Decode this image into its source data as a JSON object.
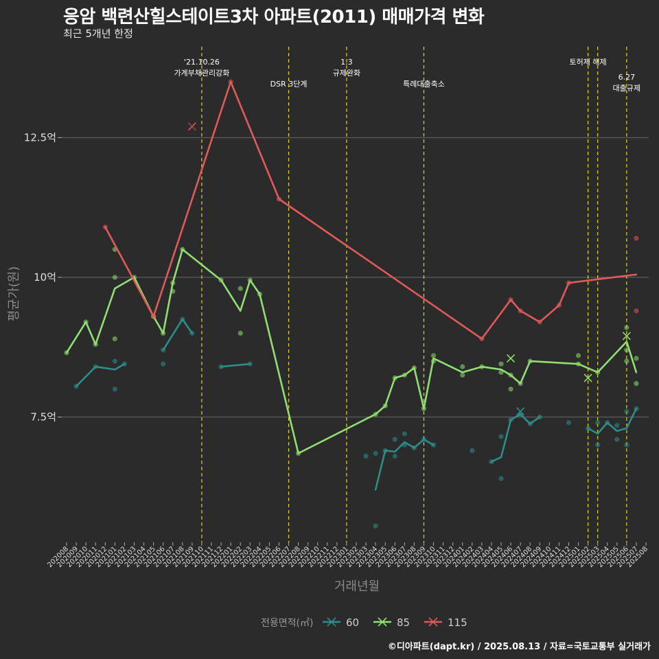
{
  "title": "응암 백련산힐스테이트3차 아파트(2011) 매매가격 변화",
  "subtitle": "최근 5개년 한정",
  "credit": "©디아파트(dapt.kr) / 2025.08.13 / 자료=국토교통부 실거래가",
  "chart_data": {
    "type": "line",
    "xlabel": "거래년월",
    "ylabel": "평균가(원)",
    "x_range": [
      "202008",
      "202508"
    ],
    "y_ticks": [
      {
        "v": 7.5,
        "label": "7.5억"
      },
      {
        "v": 10,
        "label": "10억"
      },
      {
        "v": 12.5,
        "label": "12.5억"
      }
    ],
    "ylim": [
      5.2,
      14.5
    ],
    "grid": "horizontal-major",
    "legend_title": "전용면적(㎡)",
    "legend_position": "bottom",
    "events": [
      {
        "x": "202110",
        "lines": [
          "'21.10.26",
          "가계부채관리강화"
        ],
        "row": 0
      },
      {
        "x": "202207",
        "lines": [
          "DSR 3단계"
        ],
        "row": 1
      },
      {
        "x": "202301",
        "lines": [
          "1.3",
          "규제완화"
        ],
        "row": 0
      },
      {
        "x": "202309",
        "lines": [
          "특례대출축소"
        ],
        "row": 1
      },
      {
        "x": "202502",
        "lines": [
          "토허제 해제"
        ],
        "row": 0
      },
      {
        "x": "202503",
        "lines": [],
        "row": 0
      },
      {
        "x": "202506",
        "lines": [
          "6.27",
          "대출규제"
        ],
        "row": 1
      }
    ],
    "series": [
      {
        "name": "60",
        "color": "#2a8f8a",
        "line": [
          [
            "202009",
            8.05
          ],
          [
            "202011",
            8.4
          ],
          [
            "202101",
            8.35
          ],
          [
            "202102",
            8.45
          ],
          null,
          [
            "202106",
            8.7
          ],
          [
            "202108",
            9.25
          ],
          [
            "202109",
            9.0
          ],
          null,
          [
            "202112",
            8.4
          ],
          [
            "202203",
            8.45
          ],
          null,
          [
            "202304",
            6.2
          ],
          [
            "202305",
            6.9
          ],
          [
            "202306",
            6.88
          ],
          [
            "202307",
            7.05
          ],
          [
            "202308",
            6.95
          ],
          [
            "202309",
            7.1
          ],
          [
            "202310",
            7.0
          ],
          null,
          [
            "202404",
            6.7
          ],
          [
            "202405",
            6.78
          ],
          [
            "202406",
            7.45
          ],
          [
            "202407",
            7.55
          ],
          [
            "202408",
            7.38
          ],
          [
            "202409",
            7.5
          ],
          null,
          [
            "202502",
            7.3
          ],
          [
            "202503",
            7.2
          ],
          [
            "202504",
            7.4
          ],
          [
            "202505",
            7.25
          ],
          [
            "202506",
            7.3
          ],
          [
            "202507",
            7.65
          ]
        ],
        "points": [
          [
            "202009",
            8.05
          ],
          [
            "202011",
            8.4
          ],
          [
            "202101",
            8.5
          ],
          [
            "202101",
            8.0
          ],
          [
            "202102",
            8.45
          ],
          [
            "202106",
            8.45
          ],
          [
            "202106",
            8.7
          ],
          [
            "202108",
            9.25
          ],
          [
            "202109",
            9.0
          ],
          [
            "202112",
            8.4
          ],
          [
            "202203",
            8.45
          ],
          [
            "202304",
            6.85
          ],
          [
            "202304",
            5.55
          ],
          [
            "202305",
            6.9
          ],
          [
            "202306",
            6.8
          ],
          [
            "202306",
            7.1
          ],
          [
            "202307",
            7.2
          ],
          [
            "202307",
            7.0
          ],
          [
            "202308",
            6.95
          ],
          [
            "202309",
            7.1
          ],
          [
            "202310",
            7.0
          ],
          [
            "202303",
            6.8
          ],
          [
            "202402",
            6.9
          ],
          [
            "202404",
            6.7
          ],
          [
            "202405",
            7.15
          ],
          [
            "202405",
            6.4
          ],
          [
            "202406",
            7.45
          ],
          [
            "202407",
            7.55
          ],
          [
            "202408",
            7.38
          ],
          [
            "202409",
            7.5
          ],
          [
            "202412",
            7.4
          ],
          [
            "202502",
            7.3
          ],
          [
            "202503",
            7.0
          ],
          [
            "202503",
            7.4
          ],
          [
            "202504",
            7.4
          ],
          [
            "202505",
            7.1
          ],
          [
            "202505",
            7.35
          ],
          [
            "202506",
            7.0
          ],
          [
            "202506",
            7.6
          ],
          [
            "202507",
            7.65
          ]
        ],
        "cancelled": [
          [
            "202407",
            7.6
          ]
        ]
      },
      {
        "name": "85",
        "color": "#90e070",
        "line": [
          [
            "202008",
            8.65
          ],
          [
            "202010",
            9.2
          ],
          [
            "202011",
            8.8
          ],
          [
            "202101",
            9.8
          ],
          [
            "202103",
            10.0
          ],
          [
            "202105",
            9.3
          ],
          [
            "202106",
            9.0
          ],
          [
            "202107",
            9.9
          ],
          [
            "202108",
            10.5
          ],
          [
            "202112",
            9.95
          ],
          [
            "202202",
            9.4
          ],
          [
            "202203",
            9.95
          ],
          [
            "202204",
            9.7
          ],
          [
            "202208",
            6.85
          ],
          [
            "202304",
            7.55
          ],
          [
            "202305",
            7.7
          ],
          [
            "202306",
            8.2
          ],
          [
            "202307",
            8.25
          ],
          [
            "202308",
            8.38
          ],
          [
            "202309",
            7.65
          ],
          [
            "202310",
            8.55
          ],
          [
            "202401",
            8.3
          ],
          [
            "202403",
            8.4
          ],
          [
            "202405",
            8.35
          ],
          [
            "202406",
            8.25
          ],
          [
            "202407",
            8.1
          ],
          [
            "202408",
            8.5
          ],
          [
            "202501",
            8.45
          ],
          [
            "202503",
            8.3
          ],
          [
            "202506",
            8.85
          ],
          [
            "202507",
            8.3
          ]
        ],
        "points": [
          [
            "202008",
            8.65
          ],
          [
            "202010",
            9.2
          ],
          [
            "202011",
            8.8
          ],
          [
            "202101",
            10.5
          ],
          [
            "202101",
            10.0
          ],
          [
            "202101",
            8.9
          ],
          [
            "202103",
            10.0
          ],
          [
            "202105",
            9.3
          ],
          [
            "202106",
            9.0
          ],
          [
            "202107",
            9.75
          ],
          [
            "202107",
            9.9
          ],
          [
            "202108",
            10.5
          ],
          [
            "202112",
            9.95
          ],
          [
            "202202",
            9.8
          ],
          [
            "202202",
            9.0
          ],
          [
            "202203",
            9.95
          ],
          [
            "202204",
            9.7
          ],
          [
            "202208",
            6.85
          ],
          [
            "202304",
            7.55
          ],
          [
            "202305",
            7.7
          ],
          [
            "202306",
            8.2
          ],
          [
            "202307",
            8.25
          ],
          [
            "202308",
            8.38
          ],
          [
            "202309",
            7.65
          ],
          [
            "202310",
            8.6
          ],
          [
            "202310",
            8.5
          ],
          [
            "202401",
            8.25
          ],
          [
            "202401",
            8.4
          ],
          [
            "202403",
            8.4
          ],
          [
            "202405",
            8.45
          ],
          [
            "202405",
            8.3
          ],
          [
            "202406",
            8.0
          ],
          [
            "202406",
            8.25
          ],
          [
            "202407",
            8.1
          ],
          [
            "202408",
            8.5
          ],
          [
            "202501",
            8.6
          ],
          [
            "202501",
            8.45
          ],
          [
            "202503",
            8.3
          ],
          [
            "202506",
            9.1
          ],
          [
            "202506",
            8.5
          ],
          [
            "202506",
            8.7
          ],
          [
            "202507",
            8.55
          ],
          [
            "202507",
            8.1
          ]
        ],
        "cancelled": [
          [
            "202406",
            8.55
          ],
          [
            "202502",
            8.2
          ],
          [
            "202506",
            8.95
          ]
        ]
      },
      {
        "name": "115",
        "color": "#e15a58",
        "line": [
          [
            "202012",
            10.9
          ],
          [
            "202105",
            9.3
          ],
          [
            "202201",
            13.5
          ],
          [
            "202206",
            11.4
          ],
          [
            "202403",
            8.9
          ],
          [
            "202406",
            9.6
          ],
          [
            "202407",
            9.4
          ],
          [
            "202409",
            9.2
          ],
          [
            "202411",
            9.5
          ],
          [
            "202412",
            9.9
          ],
          [
            "202507",
            10.05
          ]
        ],
        "points": [
          [
            "202012",
            10.9
          ],
          [
            "202105",
            9.3
          ],
          [
            "202201",
            13.5
          ],
          [
            "202206",
            11.4
          ],
          [
            "202403",
            8.9
          ],
          [
            "202406",
            9.6
          ],
          [
            "202407",
            9.4
          ],
          [
            "202409",
            9.2
          ],
          [
            "202411",
            9.5
          ],
          [
            "202412",
            9.9
          ],
          [
            "202507",
            10.7
          ],
          [
            "202507",
            9.4
          ]
        ],
        "cancelled": [
          [
            "202109",
            12.7
          ]
        ]
      }
    ]
  }
}
